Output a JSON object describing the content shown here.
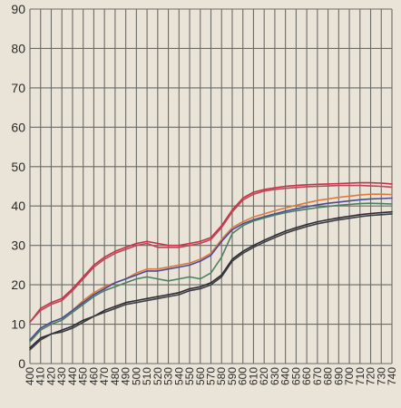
{
  "chart_data": {
    "type": "line",
    "title": "",
    "xlabel": "",
    "ylabel": "",
    "xlim": [
      400,
      740
    ],
    "ylim": [
      0,
      90
    ],
    "grid": true,
    "legend": "none",
    "x_ticks": [
      400,
      410,
      420,
      430,
      440,
      450,
      460,
      470,
      480,
      490,
      500,
      510,
      520,
      530,
      540,
      550,
      560,
      570,
      580,
      590,
      600,
      610,
      620,
      630,
      640,
      650,
      660,
      670,
      680,
      690,
      700,
      710,
      720,
      730,
      740
    ],
    "x_tick_labels": [
      "400",
      "410",
      "420",
      "430",
      "440",
      "450",
      "460",
      "470",
      "480",
      "490",
      "500",
      "510",
      "520",
      "530",
      "540",
      "550",
      "560",
      "570",
      "580",
      "590",
      "600",
      "610",
      "620",
      "630",
      "640",
      "650",
      "660",
      "670",
      "680",
      "690",
      "700",
      "710",
      "720",
      "730",
      "740"
    ],
    "y_ticks": [
      0,
      10,
      20,
      30,
      40,
      50,
      60,
      70,
      80,
      90
    ],
    "y_tick_labels": [
      "0",
      "10",
      "20",
      "30",
      "40",
      "50",
      "60",
      "70",
      "80",
      "90"
    ],
    "x": [
      400,
      410,
      420,
      430,
      440,
      450,
      460,
      470,
      480,
      490,
      500,
      510,
      520,
      530,
      540,
      550,
      560,
      570,
      580,
      590,
      600,
      610,
      620,
      630,
      640,
      650,
      660,
      670,
      680,
      690,
      700,
      710,
      720,
      730,
      740
    ],
    "series": [
      {
        "color": "#c83048",
        "values": [
          10.5,
          14,
          15.5,
          16.5,
          19,
          22,
          25,
          27,
          28.5,
          29.5,
          30.5,
          31,
          30.5,
          30,
          30,
          30.5,
          31,
          32,
          35,
          39,
          42,
          43.5,
          44.2,
          44.6,
          45,
          45.2,
          45.4,
          45.5,
          45.6,
          45.7,
          45.8,
          45.9,
          45.9,
          45.8,
          45.6
        ]
      },
      {
        "color": "#b84858",
        "values": [
          10.5,
          13.5,
          15,
          16,
          18.5,
          21.5,
          24.5,
          26.5,
          28,
          29,
          30,
          30.5,
          29.5,
          29.5,
          29.5,
          30,
          30.5,
          31.5,
          34.5,
          38.5,
          41.5,
          43,
          43.8,
          44.2,
          44.5,
          44.7,
          44.9,
          45,
          45.1,
          45.2,
          45.2,
          45.2,
          45.1,
          45,
          44.8
        ]
      },
      {
        "color": "#e07838",
        "values": [
          6,
          9,
          10.5,
          11.5,
          13.5,
          16,
          18,
          19.5,
          20.5,
          21.5,
          23,
          24,
          24,
          24.5,
          25,
          25.5,
          26.5,
          28,
          31.5,
          34.5,
          36,
          37.2,
          38,
          38.8,
          39.5,
          40.2,
          40.8,
          41.4,
          41.8,
          42.2,
          42.5,
          42.8,
          43,
          43,
          42.9
        ]
      },
      {
        "color": "#4a4a9a",
        "values": [
          6,
          9,
          10.5,
          11.5,
          13.5,
          15.5,
          17.5,
          19,
          20.5,
          21.5,
          22.5,
          23.5,
          23.5,
          24,
          24.5,
          25,
          26,
          27.5,
          31,
          34,
          35.5,
          36.5,
          37.3,
          38,
          38.7,
          39.3,
          39.8,
          40.3,
          40.7,
          41,
          41.3,
          41.6,
          41.8,
          41.9,
          42
        ]
      },
      {
        "color": "#4a8060",
        "values": [
          5.5,
          8.5,
          10,
          11,
          13,
          15,
          17,
          18.5,
          19.5,
          20.5,
          21.5,
          22,
          21.5,
          21,
          21.5,
          22,
          21.5,
          23,
          27,
          33,
          35,
          36.2,
          37,
          37.7,
          38.3,
          38.8,
          39.2,
          39.6,
          39.9,
          40.2,
          40.4,
          40.6,
          40.7,
          40.6,
          40.5
        ]
      },
      {
        "color": "#2a2a30",
        "values": [
          4,
          6.5,
          7.5,
          8.5,
          9.5,
          11,
          12,
          13.5,
          14.5,
          15.5,
          16,
          16.5,
          17,
          17.5,
          18,
          19,
          19.5,
          20.5,
          22.5,
          26.5,
          28.5,
          30,
          31.3,
          32.5,
          33.6,
          34.5,
          35.3,
          36,
          36.5,
          37,
          37.4,
          37.8,
          38.1,
          38.3,
          38.5
        ]
      },
      {
        "color": "#3a3a44",
        "values": [
          3.5,
          6,
          7.5,
          8,
          9,
          10.5,
          12,
          13,
          14,
          15,
          15.5,
          16,
          16.5,
          17,
          17.5,
          18.5,
          19,
          20,
          22,
          26,
          28,
          29.5,
          30.8,
          32,
          33.1,
          34,
          34.8,
          35.5,
          36,
          36.5,
          36.9,
          37.3,
          37.6,
          37.8,
          38
        ]
      }
    ]
  }
}
